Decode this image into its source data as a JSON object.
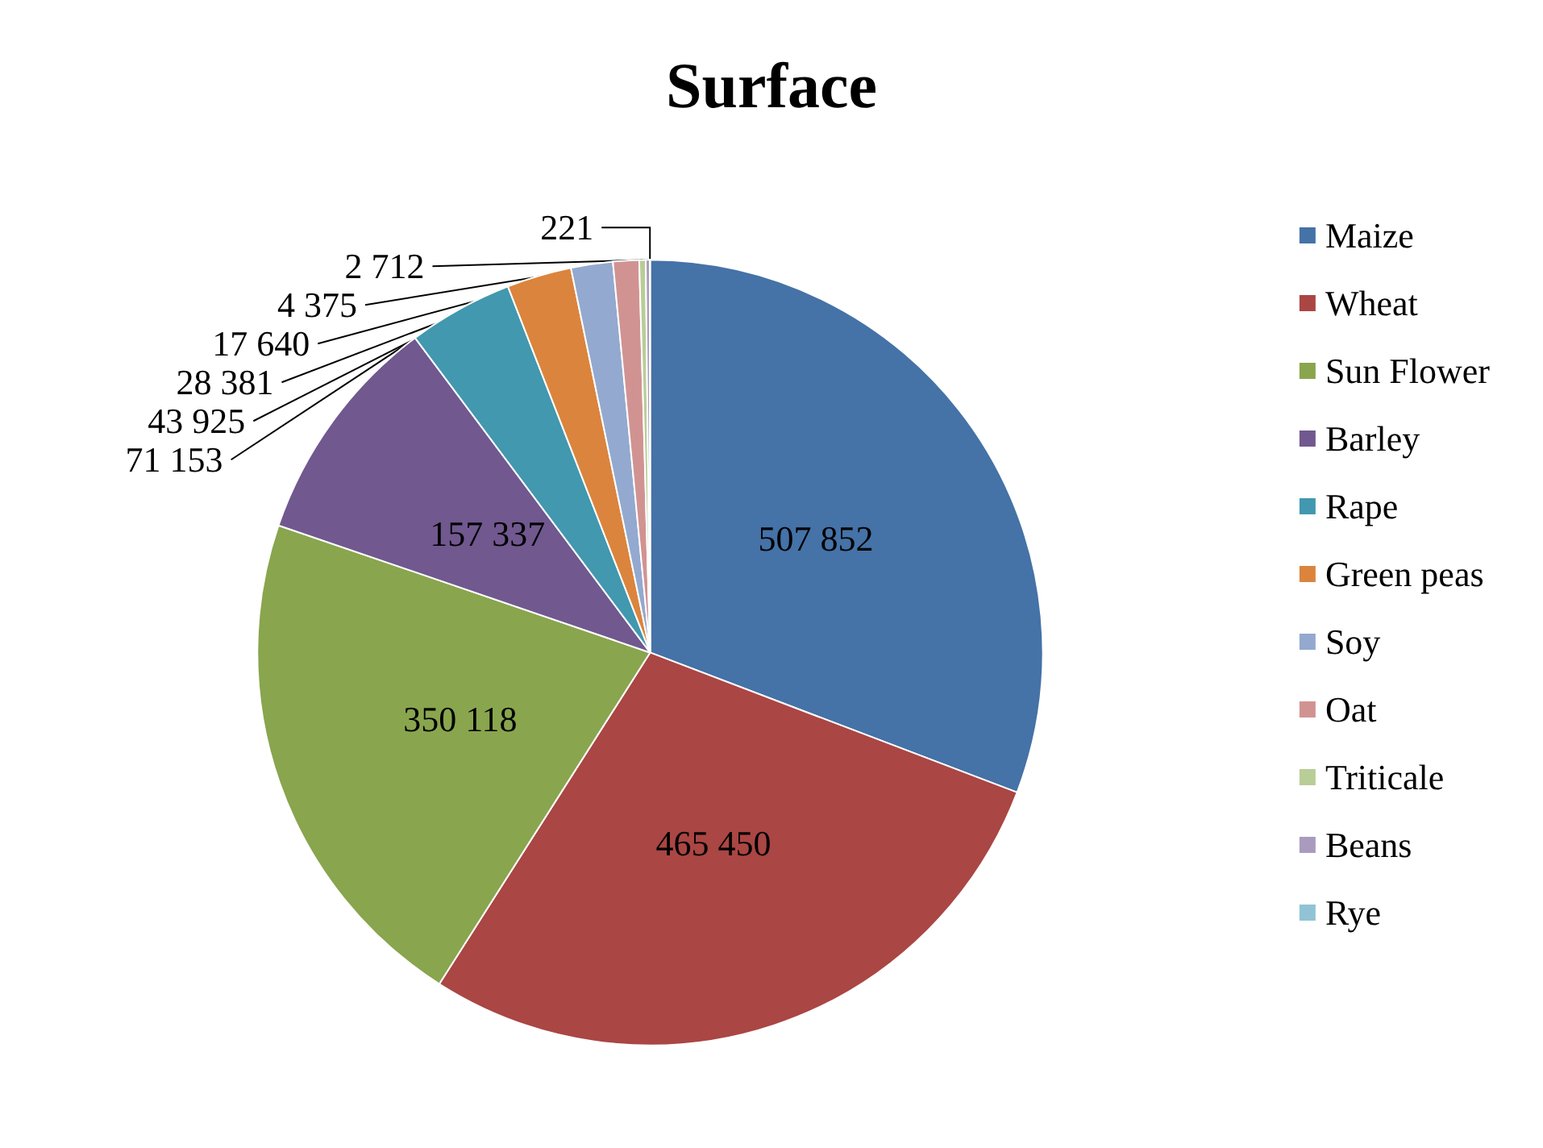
{
  "chart_data": {
    "type": "pie",
    "title": "Surface",
    "categories": [
      "Maize",
      "Wheat",
      "Sun Flower",
      "Barley",
      "Rape",
      "Green peas",
      "Soy",
      "Oat",
      "Triticale",
      "Beans",
      "Rye"
    ],
    "values": [
      507852,
      465450,
      350118,
      157337,
      71153,
      43925,
      28381,
      17640,
      4375,
      2712,
      221
    ],
    "value_labels": [
      "507 852",
      "465 450",
      "350 118",
      "157 337",
      "71 153",
      "43 925",
      "28 381",
      "17 640",
      "4 375",
      "2 712",
      "221"
    ],
    "colors": [
      "#4572a7",
      "#aa4643",
      "#89a54e",
      "#71588f",
      "#4198af",
      "#db843d",
      "#93a9cf",
      "#d19392",
      "#b9cd96",
      "#a99bbd",
      "#91c3d5"
    ],
    "legend": "right"
  }
}
